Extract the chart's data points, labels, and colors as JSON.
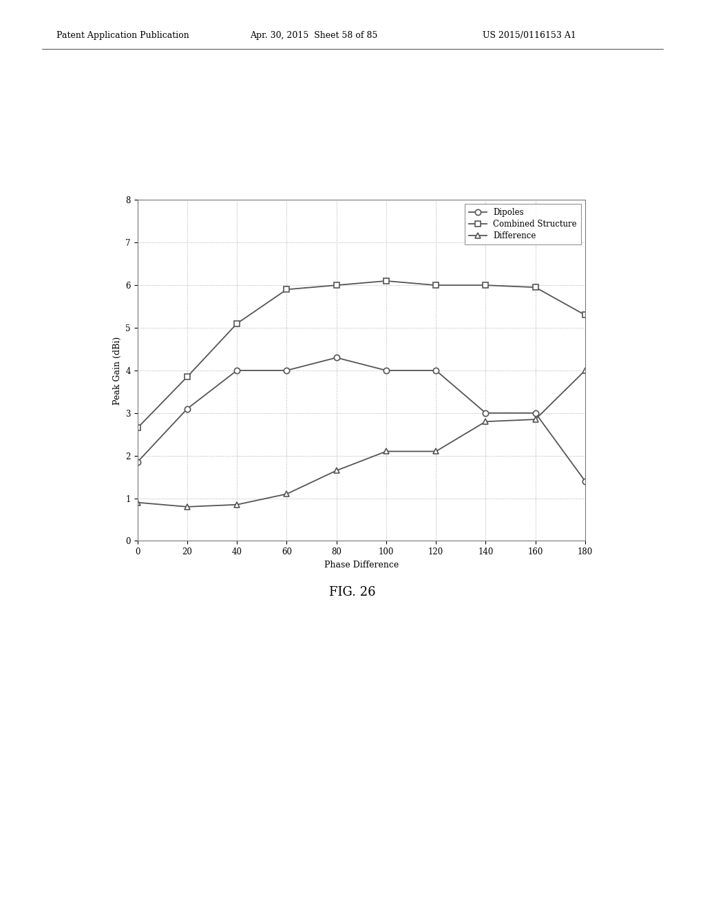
{
  "x": [
    0,
    20,
    40,
    60,
    80,
    100,
    120,
    140,
    160,
    180
  ],
  "dipoles": [
    1.85,
    3.1,
    4.0,
    4.0,
    4.3,
    4.0,
    4.0,
    3.0,
    3.0,
    1.4
  ],
  "combined": [
    2.65,
    3.85,
    5.1,
    5.9,
    6.0,
    6.1,
    6.0,
    6.0,
    5.95,
    5.3
  ],
  "difference": [
    0.9,
    0.8,
    0.85,
    1.1,
    1.65,
    2.1,
    2.1,
    2.8,
    2.85,
    4.0
  ],
  "xlabel": "Phase Difference",
  "ylabel": "Peak Gain (dBi)",
  "ylim": [
    0,
    8
  ],
  "xlim": [
    0,
    180
  ],
  "yticks": [
    0,
    1,
    2,
    3,
    4,
    5,
    6,
    7,
    8
  ],
  "xticks": [
    0,
    20,
    40,
    60,
    80,
    100,
    120,
    140,
    160,
    180
  ],
  "legend_labels": [
    "Dipoles",
    "Combined Structure",
    "Difference"
  ],
  "fig_caption": "FIG. 26",
  "header_left": "Patent Application Publication",
  "header_center": "Apr. 30, 2015  Sheet 58 of 85",
  "header_right": "US 2015/0116153 A1",
  "line_color": "#555555",
  "background_color": "#ffffff",
  "grid_color": "#aaaaaa"
}
